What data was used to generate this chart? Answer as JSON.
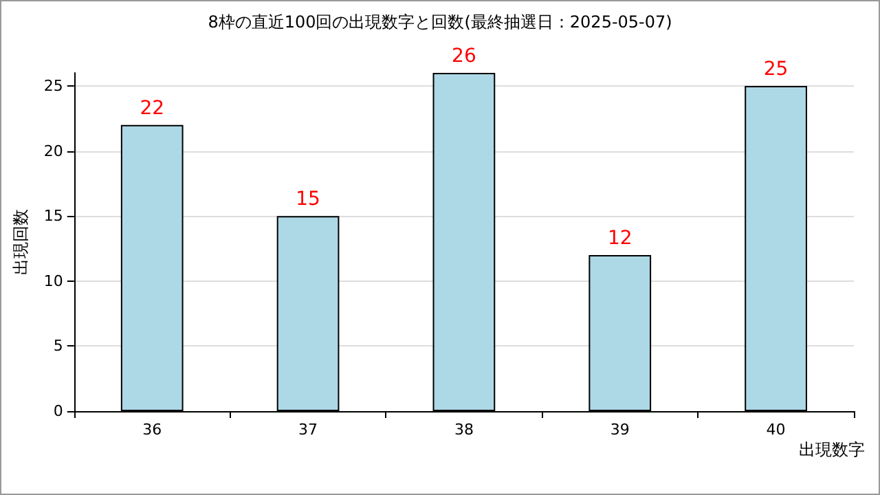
{
  "chart_data": {
    "type": "bar",
    "title": "8枠の直近100回の出現数字と回数(最終抽選日：2025-05-07)",
    "xlabel": "出現数字",
    "ylabel": "出現回数",
    "categories": [
      "36",
      "37",
      "38",
      "39",
      "40"
    ],
    "series": [
      {
        "color": "#add8e6",
        "values": [
          22,
          15,
          26,
          12,
          25
        ]
      }
    ],
    "ylim": [
      0,
      26
    ],
    "yticks": [
      0,
      5,
      10,
      15,
      20,
      25
    ],
    "grid": "y",
    "data_labels": true
  }
}
